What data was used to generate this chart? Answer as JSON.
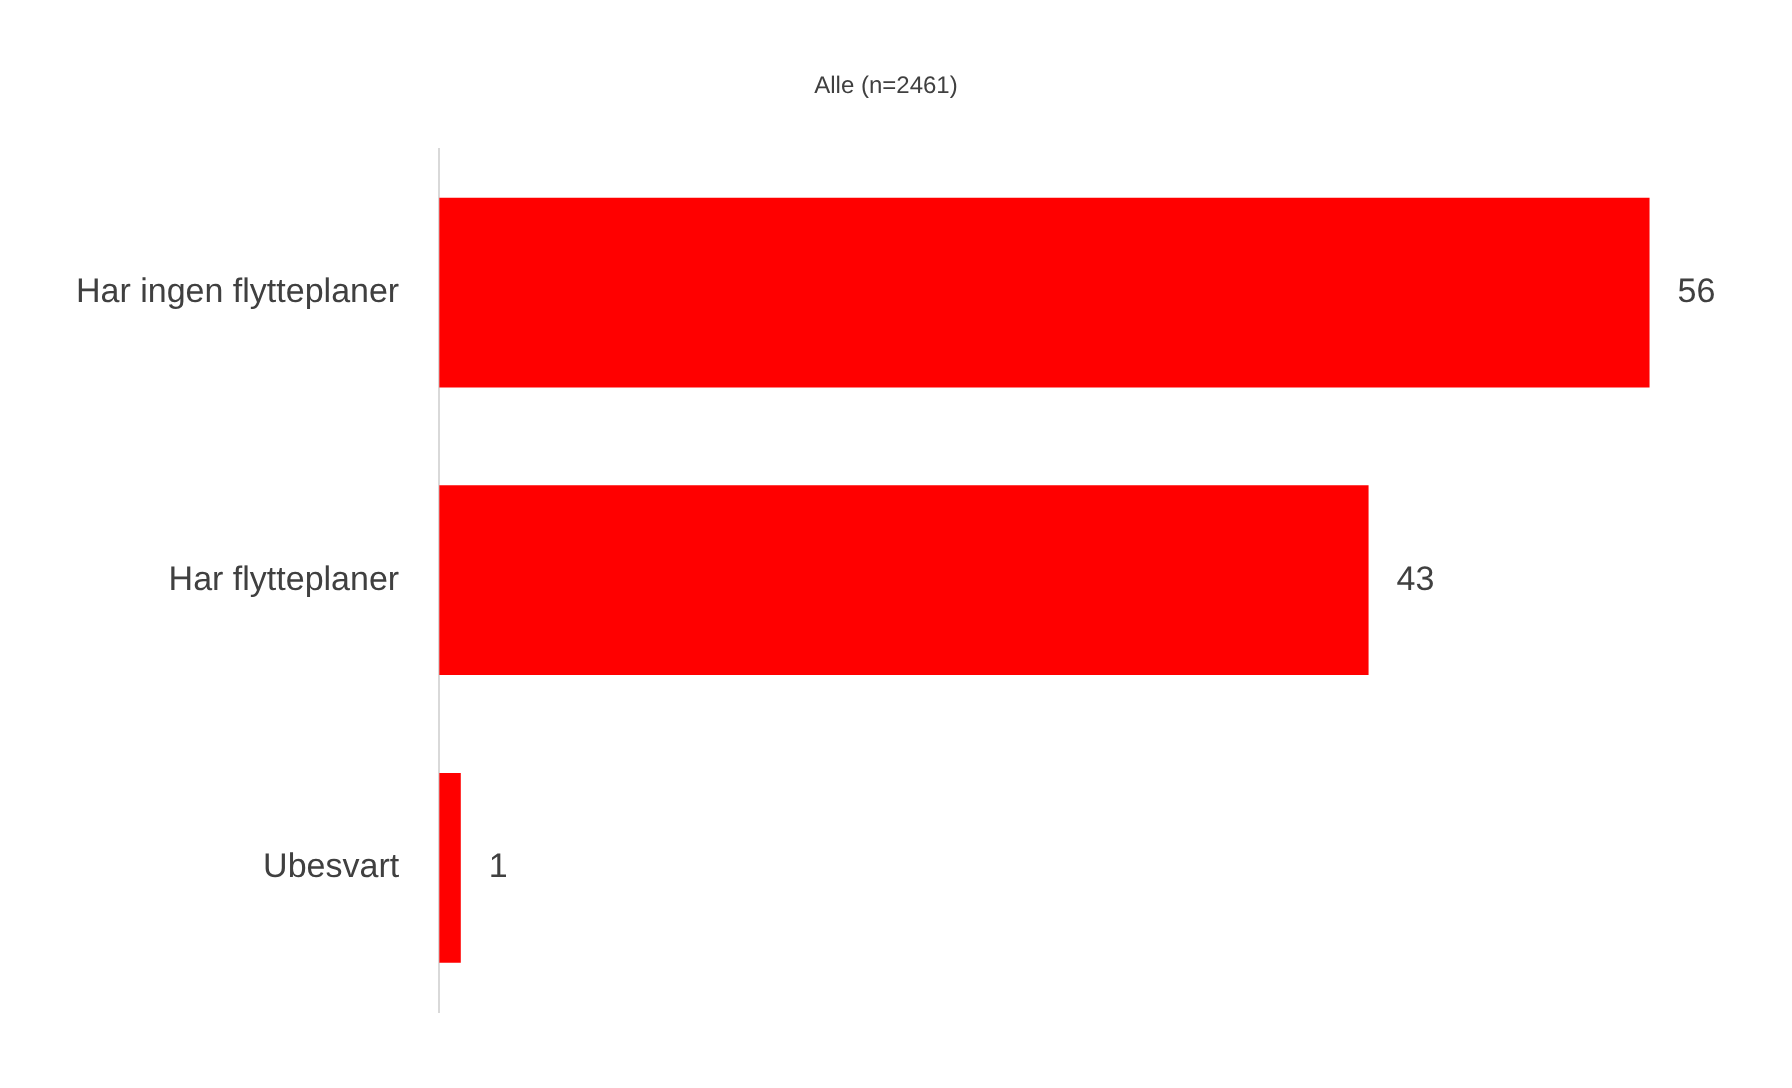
{
  "chart_data": {
    "type": "bar",
    "orientation": "horizontal",
    "title": "Alle (n=2461)",
    "categories": [
      "Har ingen flytteplaner",
      "Har flytteplaner",
      "Ubesvart"
    ],
    "values": [
      56,
      43,
      1
    ],
    "color": "#ff0000",
    "data_labels": true
  }
}
